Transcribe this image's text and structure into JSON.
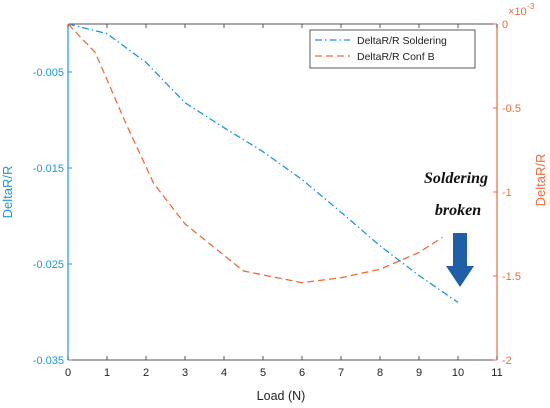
{
  "chart_data": {
    "type": "line",
    "x": [
      0,
      1,
      2,
      3,
      4,
      5,
      6,
      7,
      8,
      9,
      10
    ],
    "xlabel": "Load (N)",
    "xlim": [
      0,
      11
    ],
    "x_ticks": [
      "0",
      "1",
      "2",
      "3",
      "4",
      "5",
      "6",
      "7",
      "8",
      "9",
      "10",
      "11"
    ],
    "left_axis": {
      "label": "DeltaR/R",
      "lim": [
        -0.035,
        0
      ],
      "ticks": [
        -0.005,
        -0.015,
        -0.025,
        -0.035
      ],
      "tick_labels": [
        "-0.005",
        "-0.015",
        "-0.025",
        "-0.035"
      ],
      "color": "#1a9bd7"
    },
    "right_axis": {
      "label": "DeltaR/R",
      "lim": [
        -2,
        0
      ],
      "ticks": [
        0,
        -0.5,
        -1,
        -1.5,
        -2
      ],
      "tick_labels": [
        "0",
        "-0.5",
        "-1",
        "-1.5",
        "-2"
      ],
      "exponent_label": "×10",
      "exponent_power": "-3",
      "color": "#f26b3a"
    },
    "series": [
      {
        "name": "DeltaR/R Soldering",
        "axis": "left",
        "style": "dash-dot",
        "color": "#1a9bd7",
        "x": [
          0,
          1,
          2,
          3,
          4,
          5,
          6,
          7,
          8,
          9,
          10
        ],
        "y": [
          0,
          -0.001,
          -0.004,
          -0.0082,
          -0.0108,
          -0.0133,
          -0.0162,
          -0.0196,
          -0.0231,
          -0.0262,
          -0.029
        ]
      },
      {
        "name": "DeltaR/R Conf B",
        "axis": "right",
        "style": "dashed",
        "color": "#f26b3a",
        "x": [
          0,
          0.7,
          1.5,
          2.2,
          3,
          3.8,
          4.5,
          6,
          7,
          8,
          9,
          9.6
        ],
        "y": [
          0,
          -0.17,
          -0.6,
          -0.95,
          -1.19,
          -1.34,
          -1.47,
          -1.54,
          -1.51,
          -1.46,
          -1.36,
          -1.27
        ]
      }
    ],
    "legend": {
      "position": "top-right",
      "entries": [
        "DeltaR/R Soldering",
        "DeltaR/R Conf B"
      ]
    },
    "annotation": {
      "lines": [
        "Soldering",
        "broken"
      ],
      "arrow_color": "#1e5fa8",
      "points_to_x": 10
    }
  }
}
